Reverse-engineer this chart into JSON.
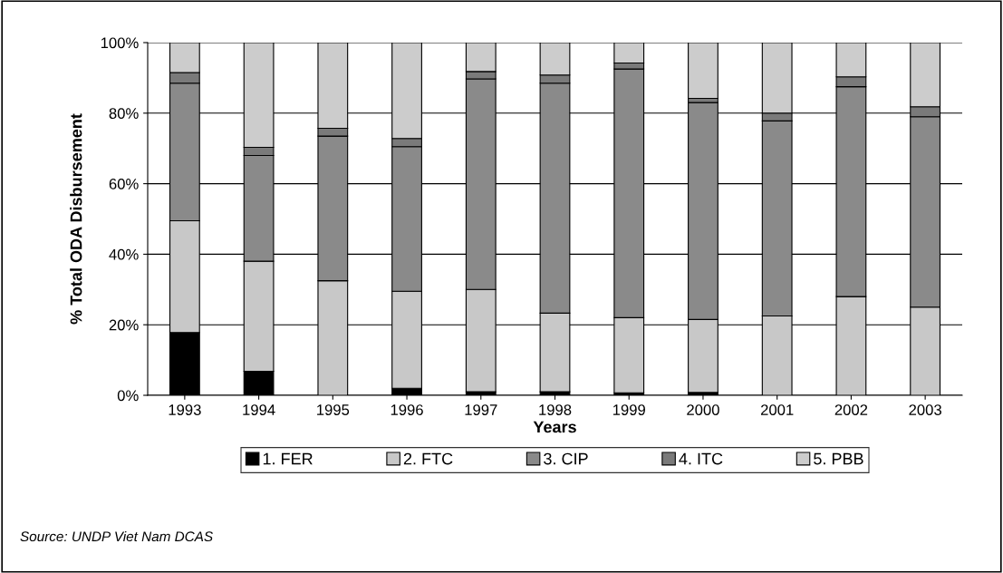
{
  "chart_data": {
    "type": "bar",
    "stacked": true,
    "xlabel": "Years",
    "ylabel": "% Total ODA Disbursement",
    "categories": [
      "1993",
      "1994",
      "1995",
      "1996",
      "1997",
      "1998",
      "1999",
      "2000",
      "2001",
      "2002",
      "2003"
    ],
    "series": [
      {
        "name": "1. FER",
        "color": "#000000",
        "values": [
          17.8,
          6.8,
          null,
          2.0,
          1.0,
          1.0,
          0.7,
          0.8,
          null,
          null,
          null
        ]
      },
      {
        "name": "2. FTC",
        "color": "#c8c8c8",
        "values": [
          31.7,
          31.2,
          32.5,
          27.5,
          29.0,
          22.3,
          21.3,
          20.7,
          22.5,
          28.0,
          25.0
        ]
      },
      {
        "name": "3. CIP",
        "color": "#8a8a8a",
        "values": [
          39.0,
          30.0,
          41.0,
          41.0,
          59.7,
          65.2,
          70.5,
          61.5,
          55.3,
          59.5,
          54.0
        ]
      },
      {
        "name": "4. ITC",
        "color": "#7a7a7a",
        "values": [
          3.0,
          2.3,
          2.2,
          2.3,
          2.1,
          2.3,
          1.7,
          1.2,
          2.2,
          2.8,
          2.8
        ]
      },
      {
        "name": "5. PBB",
        "color": "#cccccc",
        "values": [
          8.5,
          29.7,
          24.3,
          27.2,
          8.2,
          9.2,
          5.8,
          15.8,
          20.0,
          9.7,
          18.2
        ]
      }
    ],
    "ylim": [
      0,
      100
    ],
    "yticks": [
      {
        "value": 0,
        "label": "0%"
      },
      {
        "value": 20,
        "label": "20%"
      },
      {
        "value": 40,
        "label": "40%"
      },
      {
        "value": 60,
        "label": "60%"
      },
      {
        "value": 80,
        "label": "80%"
      },
      {
        "value": 100,
        "label": "100%"
      }
    ],
    "grid": "y",
    "legend": "bottom",
    "annotations": [
      "Source: UNDP Viet Nam DCAS"
    ]
  }
}
